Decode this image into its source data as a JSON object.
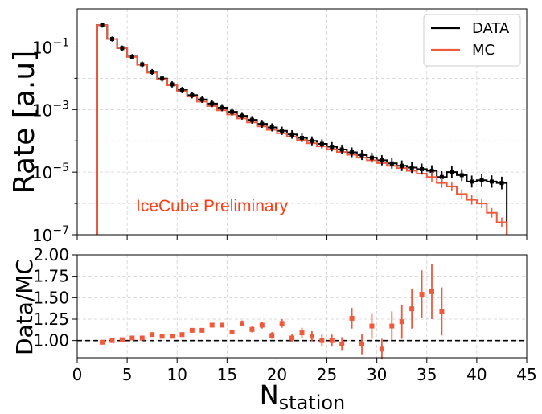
{
  "chart_data": [
    {
      "id": "top",
      "type": "step-histogram",
      "ylabel": "Rate [a.u]",
      "yscale": "log",
      "ylim_exp": [
        -7,
        0.22
      ],
      "xlim": [
        0,
        45
      ],
      "yticks": [
        {
          "exp": -1,
          "label_base": "10",
          "label_exp": "−1"
        },
        {
          "exp": -3,
          "label_base": "10",
          "label_exp": "−3"
        },
        {
          "exp": -5,
          "label_base": "10",
          "label_exp": "−5"
        },
        {
          "exp": -7,
          "label_base": "10",
          "label_exp": "−7"
        }
      ],
      "legend": [
        {
          "label": "DATA",
          "color": "#000000"
        },
        {
          "label": "MC",
          "color": "#f05a3c"
        }
      ],
      "annotation": {
        "text": "IceCube Preliminary",
        "color": "#ff3c14"
      },
      "bin_edges": [
        2,
        3,
        4,
        5,
        6,
        7,
        8,
        9,
        10,
        11,
        12,
        13,
        14,
        15,
        16,
        17,
        18,
        19,
        20,
        21,
        22,
        23,
        24,
        25,
        26,
        27,
        28,
        29,
        30,
        31,
        32,
        33,
        34,
        35,
        36,
        37,
        38,
        39,
        40,
        41,
        42,
        43
      ],
      "data_series": {
        "name": "DATA",
        "color": "#000000",
        "values": [
          0.5,
          0.18,
          0.092,
          0.049,
          0.028,
          0.016,
          0.0098,
          0.0064,
          0.0042,
          0.0029,
          0.0021,
          0.00155,
          0.00115,
          0.00085,
          0.00063,
          0.00047,
          0.00035,
          0.00027,
          0.00021,
          0.00016,
          0.000125,
          0.0001,
          8e-05,
          6.5e-05,
          5.3e-05,
          4.3e-05,
          3.5e-05,
          2.9e-05,
          2.4e-05,
          1.9e-05,
          1.6e-05,
          1.4e-05,
          1.25e-05,
          1.1e-05,
          7e-06,
          1e-05,
          8e-06,
          5e-06,
          5.5e-06,
          5e-06,
          4.5e-06
        ]
      },
      "mc_series": {
        "name": "MC",
        "color": "#f05a3c",
        "values": [
          0.5,
          0.18,
          0.092,
          0.048,
          0.027,
          0.015,
          0.0093,
          0.006,
          0.0039,
          0.0026,
          0.0018,
          0.0013,
          0.00095,
          0.0007,
          0.00052,
          0.00039,
          0.00029,
          0.000225,
          0.000175,
          0.000136,
          0.000107,
          8.4e-05,
          6.7e-05,
          5.4e-05,
          4.4e-05,
          3.6e-05,
          2.9e-05,
          2.4e-05,
          1.95e-05,
          1.6e-05,
          1.35e-05,
          1.1e-05,
          9e-06,
          7e-06,
          4.5e-06,
          3.5e-06,
          2e-06,
          1.3e-06,
          1e-06,
          5e-07,
          2.5e-07
        ]
      }
    },
    {
      "id": "bottom",
      "type": "errorbar",
      "xlabel_base": "N",
      "xlabel_sub": "station",
      "ylabel": "Data/MC",
      "xlim": [
        0,
        45
      ],
      "ylim": [
        0.8,
        2.0
      ],
      "xticks": [
        0,
        5,
        10,
        15,
        20,
        25,
        30,
        35,
        40,
        45
      ],
      "yticks": [
        1.0,
        1.25,
        1.5,
        1.75,
        2.0
      ],
      "ytick_labels": [
        "1.00",
        "1.25",
        "1.50",
        "1.75",
        "2.00"
      ],
      "reference_line": 1.0,
      "color": "#f05a3c",
      "x": [
        2.5,
        3.5,
        4.5,
        5.5,
        6.5,
        7.5,
        8.5,
        9.5,
        10.5,
        11.5,
        12.5,
        13.5,
        14.5,
        15.5,
        16.5,
        17.5,
        18.5,
        19.5,
        20.5,
        21.5,
        22.5,
        23.5,
        24.5,
        25.5,
        26.5,
        27.5,
        28.5,
        29.5,
        30.5,
        31.5,
        32.5,
        33.5,
        34.5,
        35.5,
        36.5
      ],
      "y": [
        0.98,
        1.0,
        1.01,
        1.03,
        1.03,
        1.07,
        1.05,
        1.05,
        1.07,
        1.12,
        1.12,
        1.18,
        1.18,
        1.1,
        1.2,
        1.13,
        1.18,
        1.06,
        1.2,
        1.03,
        1.09,
        1.05,
        1.0,
        1.0,
        0.96,
        1.26,
        0.96,
        1.17,
        0.9,
        1.17,
        1.22,
        1.37,
        1.54,
        1.57,
        1.34
      ],
      "yerr": [
        0.01,
        0.01,
        0.01,
        0.01,
        0.01,
        0.01,
        0.01,
        0.015,
        0.015,
        0.02,
        0.02,
        0.025,
        0.025,
        0.03,
        0.035,
        0.035,
        0.04,
        0.04,
        0.05,
        0.05,
        0.06,
        0.06,
        0.07,
        0.07,
        0.08,
        0.12,
        0.12,
        0.15,
        0.12,
        0.17,
        0.2,
        0.23,
        0.28,
        0.32,
        0.28
      ]
    }
  ]
}
